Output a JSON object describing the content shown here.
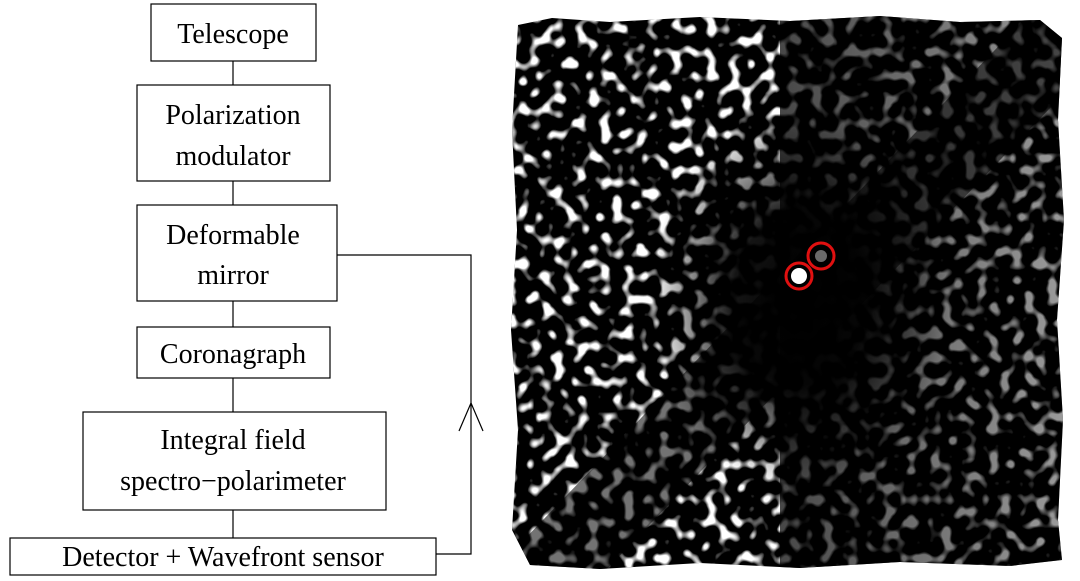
{
  "diagram": {
    "telescope": "Telescope",
    "polarization_modulator": [
      "Polarization",
      "modulator"
    ],
    "deformable_mirror": [
      "Deformable",
      "mirror"
    ],
    "coronagraph": "Coronagraph",
    "integral_field": [
      "Integral field",
      "spectro−polarimeter"
    ],
    "detector": "Detector + Wavefront sensor"
  },
  "image": {
    "background_color": "#000000",
    "speckle_color": "#ffffff",
    "marker_color": "#e01010"
  }
}
